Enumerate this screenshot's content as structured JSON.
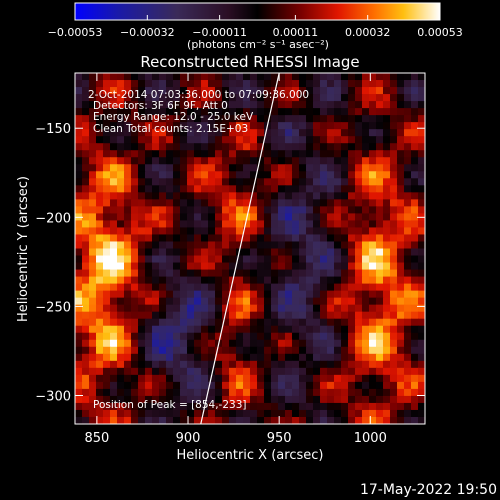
{
  "chart_data": {
    "type": "heatmap",
    "title": "Reconstructed RHESSI Image",
    "xlabel": "Heliocentric X (arcsec)",
    "ylabel": "Heliocentric Y (arcsec)",
    "xlim": [
      838,
      1030
    ],
    "ylim": [
      -316,
      -119
    ],
    "x_ticks": [
      850,
      900,
      950,
      1000
    ],
    "x_tick_labels": [
      "850",
      "900",
      "950",
      "1000"
    ],
    "y_ticks": [
      -150,
      -200,
      -250,
      -300
    ],
    "y_tick_labels": [
      "−150",
      "−200",
      "−250",
      "−300"
    ],
    "colorbar": {
      "ticks": [
        -0.00053,
        -0.00032,
        -0.00011,
        0.00011,
        0.00032,
        0.00053
      ],
      "tick_labels": [
        "−0.00053",
        "−0.00032",
        "−0.00011",
        "0.00011",
        "0.00032",
        "0.00053"
      ],
      "range": [
        -0.00053,
        0.00053
      ],
      "unit_label": "(photons cm⁻² s⁻¹ asec⁻²)"
    },
    "annotations": {
      "time": "2-Oct-2014 07:03:36.000 to 07:09:36.000",
      "detectors": "Detectors: 3F 6F 9F, Att 0",
      "energy": "Energy Range: 12.0 - 25.0 keV",
      "clean": "Clean    Total counts: 2.15E+03",
      "peak": "Position of Peak = [854,-233]"
    },
    "limb_line": {
      "x": [
        907,
        950
      ],
      "y": [
        -316,
        -119
      ]
    }
  },
  "footer": {
    "date": "17-May-2022 19:50"
  }
}
